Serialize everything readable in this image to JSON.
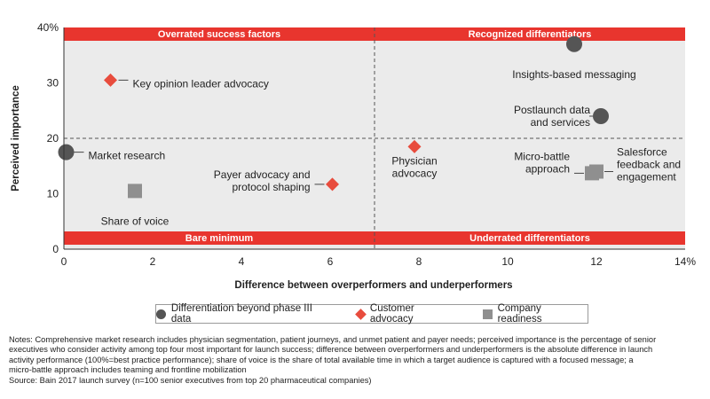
{
  "chart_data": {
    "type": "scatter",
    "xlabel": "Difference between overperformers and underperformers",
    "ylabel": "Perceived importance",
    "xlim": [
      0,
      14
    ],
    "ylim": [
      0,
      40
    ],
    "x_ticks": [
      {
        "value": 0,
        "label": "0"
      },
      {
        "value": 2,
        "label": "2"
      },
      {
        "value": 4,
        "label": "4"
      },
      {
        "value": 6,
        "label": "6"
      },
      {
        "value": 8,
        "label": "8"
      },
      {
        "value": 10,
        "label": "10"
      },
      {
        "value": 12,
        "label": "12"
      },
      {
        "value": 14,
        "label": "14%"
      }
    ],
    "y_ticks": [
      {
        "value": 0,
        "label": "0"
      },
      {
        "value": 10,
        "label": "10"
      },
      {
        "value": 20,
        "label": "20"
      },
      {
        "value": 30,
        "label": "30"
      },
      {
        "value": 40,
        "label": "40%"
      }
    ],
    "divider_x": 7,
    "divider_y": 20,
    "quadrants": {
      "top_left": "Overrated success factors",
      "top_right": "Recognized differentiators",
      "bottom_left": "Bare minimum",
      "bottom_right": "Underrated differentiators"
    },
    "colors": {
      "band": "#e8352e",
      "plot_bg": "#ebebeb",
      "circle": "#555555",
      "diamond": "#e84c3d",
      "square": "#8f8f8f"
    },
    "series": [
      {
        "name": "Differentiation beyond phase III data",
        "marker": "circle",
        "points": [
          {
            "label": "Insights-based messaging",
            "x": 11.5,
            "y": 37
          },
          {
            "label": "Postlaunch data and services",
            "x": 12.1,
            "y": 24
          },
          {
            "label": "Market research",
            "x": 0.05,
            "y": 17.5
          }
        ]
      },
      {
        "name": "Customer advocacy",
        "marker": "diamond",
        "points": [
          {
            "label": "Key opinion leader advocacy",
            "x": 1.05,
            "y": 30.5
          },
          {
            "label": "Physician advocacy",
            "x": 7.9,
            "y": 18.5
          },
          {
            "label": "Payer advocacy and protocol shaping",
            "x": 6.05,
            "y": 11.7
          }
        ]
      },
      {
        "name": "Company readiness",
        "marker": "square",
        "points": [
          {
            "label": "Share of voice",
            "x": 1.6,
            "y": 10.5
          },
          {
            "label": "Micro-battle approach",
            "x": 11.9,
            "y": 13.7
          },
          {
            "label": "Salesforce feedback and engagement",
            "x": 12.0,
            "y": 14.0
          }
        ]
      }
    ]
  },
  "legend": {
    "items": [
      "Differentiation beyond phase III data",
      "Customer advocacy",
      "Company readiness"
    ]
  },
  "notes": {
    "lines": [
      "Notes: Comprehensive market research includes physician segmentation, patient journeys, and unmet patient and payer needs; perceived importance is the percentage of senior",
      "executives who consider activity among top four most important for launch success; difference between overperformers and underperformers is the absolute difference in launch",
      "activity performance (100%=best practice performance); share of voice is the share of total available time in which a target audience is captured with a focused message; a",
      "micro-battle approach includes teaming and frontline mobilization",
      "Source: Bain 2017 launch survey (n=100 senior executives from top 20 pharmaceutical companies)"
    ]
  }
}
